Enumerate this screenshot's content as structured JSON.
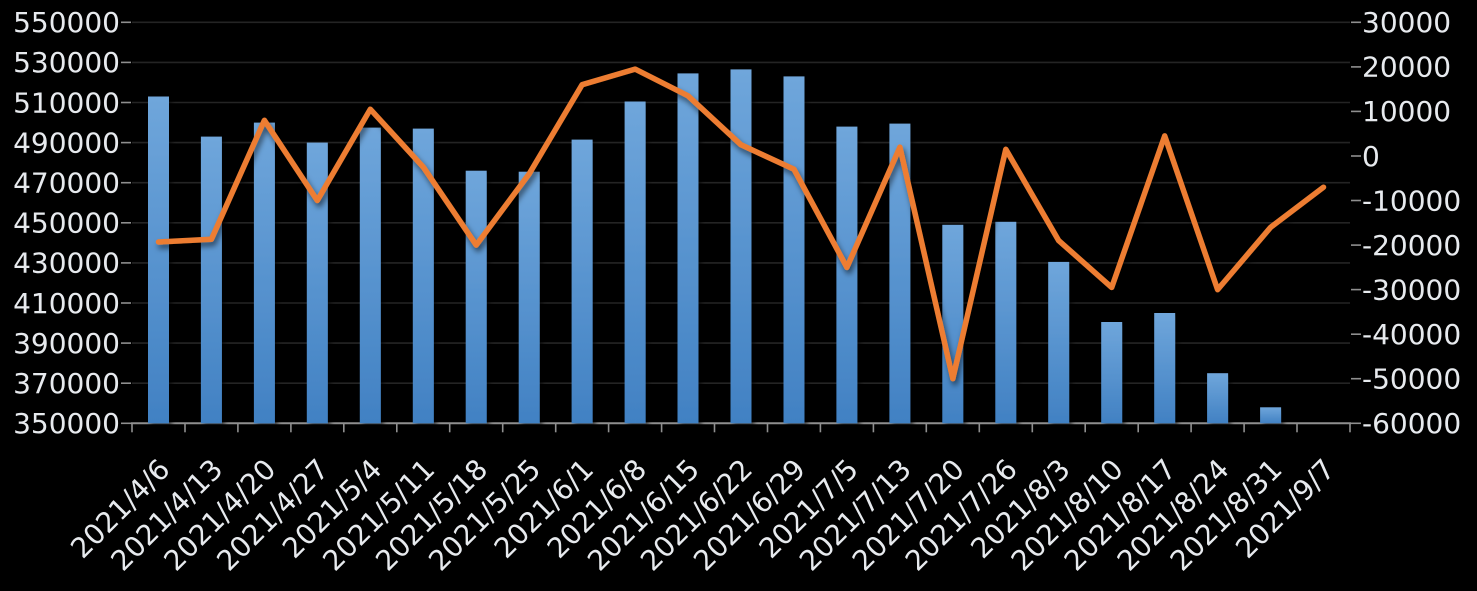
{
  "chart_data": {
    "type": "combo",
    "title": "",
    "legend": "none",
    "grid": true,
    "background": "#000000",
    "categories": [
      "2021/4/6",
      "2021/4/13",
      "2021/4/20",
      "2021/4/27",
      "2021/5/4",
      "2021/5/11",
      "2021/5/18",
      "2021/5/25",
      "2021/6/1",
      "2021/6/8",
      "2021/6/15",
      "2021/6/22",
      "2021/6/29",
      "2021/7/5",
      "2021/7/13",
      "2021/7/20",
      "2021/7/26",
      "2021/8/3",
      "2021/8/10",
      "2021/8/17",
      "2021/8/24",
      "2021/8/31",
      "2021/9/7"
    ],
    "bar_series": {
      "type": "bar",
      "axis": "left",
      "values": [
        513000,
        493000,
        500000,
        490000,
        497500,
        497000,
        476000,
        475500,
        491500,
        510500,
        524500,
        526500,
        523000,
        498000,
        499500,
        449000,
        450500,
        430500,
        400500,
        405000,
        375000,
        358000,
        null
      ]
    },
    "line_series": {
      "type": "line",
      "axis": "right",
      "values": [
        -19300,
        -18700,
        8000,
        -10000,
        10500,
        -2500,
        -20000,
        -4000,
        16000,
        19500,
        13500,
        2500,
        -3000,
        -25000,
        2000,
        -50000,
        1500,
        -19000,
        -29500,
        4500,
        -30000,
        -16000,
        -7000
      ]
    },
    "left_axis": {
      "min": 350000,
      "max": 550000,
      "step": 20000,
      "tick_labels": [
        "550000",
        "530000",
        "510000",
        "490000",
        "470000",
        "450000",
        "430000",
        "410000",
        "390000",
        "370000",
        "350000"
      ]
    },
    "right_axis": {
      "min": -60000,
      "max": 30000,
      "step": 10000,
      "tick_labels": [
        "30000",
        "20000",
        "10000",
        "0",
        "-10000",
        "-20000",
        "-30000",
        "-40000",
        "-50000",
        "-60000"
      ]
    },
    "colors": {
      "bar_gradient_top": "#6FA6DB",
      "bar_gradient_bottom": "#4181C3",
      "line": "#ED7D31",
      "axis_text": "#E7EAEE",
      "gridline": "#242424",
      "axis_line": "#8F8F8F",
      "background": "#000000"
    }
  }
}
